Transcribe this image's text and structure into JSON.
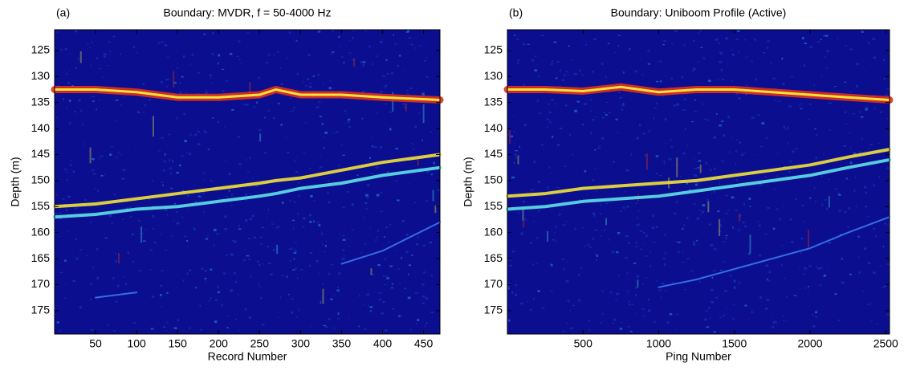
{
  "chart_data": [
    {
      "type": "line",
      "label": "(a)",
      "title": "Boundary: MVDR, f = 50-4000 Hz",
      "xlabel": "Record Number",
      "ylabel": "Depth (m)",
      "x": [
        0,
        50,
        100,
        150,
        200,
        250,
        270,
        300,
        350,
        400,
        470
      ],
      "series": [
        {
          "color": "#e0301e",
          "values": [
            132.5,
            132.5,
            133,
            134,
            134,
            133.5,
            132.5,
            133.5,
            133.5,
            134,
            134.5
          ]
        },
        {
          "color": "#f2e23a",
          "values": [
            155,
            154.5,
            153.5,
            152.5,
            151.5,
            150.5,
            150,
            149.5,
            148,
            146.5,
            145
          ]
        },
        {
          "color": "#5fe0e8",
          "values": [
            157,
            156.5,
            155.5,
            155,
            154,
            153,
            152.5,
            151.5,
            150.5,
            149,
            147.5
          ]
        },
        {
          "color": "#3a78f0",
          "values": [
            null,
            172.5,
            171.5,
            null,
            null,
            null,
            null,
            null,
            166,
            163.5,
            158
          ]
        }
      ],
      "xlim": [
        0,
        470
      ],
      "ylim": [
        121,
        179.5
      ],
      "y_inverted": true,
      "xticks": [
        50,
        100,
        150,
        200,
        250,
        300,
        350,
        400,
        450
      ],
      "yticks": [
        125,
        130,
        135,
        140,
        145,
        150,
        155,
        160,
        165,
        170,
        175
      ],
      "background": "#0b0e8e"
    },
    {
      "type": "line",
      "label": "(b)",
      "title": "Boundary: Uniboom Profile (Active)",
      "xlabel": "Ping Number",
      "ylabel": "Depth (m)",
      "x": [
        0,
        250,
        500,
        750,
        1000,
        1250,
        1500,
        1750,
        2000,
        2250,
        2525
      ],
      "series": [
        {
          "color": "#e0301e",
          "values": [
            132.5,
            132.5,
            132.8,
            132,
            133,
            132.5,
            132.5,
            133,
            133.5,
            134,
            134.5
          ]
        },
        {
          "color": "#f2e23a",
          "values": [
            153,
            152.5,
            151.5,
            151,
            150.5,
            150,
            149,
            148,
            147,
            145.5,
            144
          ]
        },
        {
          "color": "#5fe0e8",
          "values": [
            155.5,
            155,
            154,
            153.5,
            153,
            152,
            151,
            150,
            149,
            147.5,
            146
          ]
        },
        {
          "color": "#3a78f0",
          "values": [
            null,
            null,
            null,
            null,
            170.5,
            169,
            167,
            165,
            163,
            160,
            157
          ]
        }
      ],
      "xlim": [
        0,
        2525
      ],
      "ylim": [
        121,
        179.5
      ],
      "y_inverted": true,
      "xticks": [
        500,
        1000,
        1500,
        2000,
        2500
      ],
      "yticks": [
        125,
        130,
        135,
        140,
        145,
        150,
        155,
        160,
        165,
        170,
        175
      ],
      "background": "#0b0e8e"
    }
  ]
}
